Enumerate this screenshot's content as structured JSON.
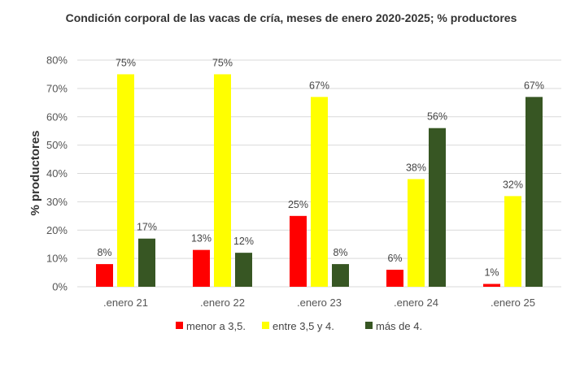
{
  "chart_data": {
    "type": "bar",
    "title": "Condición corporal de las vacas de cría, meses de enero 2020-2025; % productores",
    "ylabel": "% productores",
    "xlabel": "",
    "categories": [
      ".enero 21",
      ".enero 22",
      ".enero 23",
      ".enero 24",
      ".enero 25"
    ],
    "series": [
      {
        "name": "menor a 3,5.",
        "color": "#ff0000",
        "values": [
          8,
          13,
          25,
          6,
          1
        ],
        "labels": [
          "8%",
          "13%",
          "25%",
          "6%",
          "1%"
        ]
      },
      {
        "name": "entre 3,5 y 4.",
        "color": "#ffff00",
        "values": [
          75,
          75,
          67,
          38,
          32
        ],
        "labels": [
          "75%",
          "75%",
          "67%",
          "38%",
          "32%"
        ]
      },
      {
        "name": "más de 4.",
        "color": "#375623",
        "values": [
          17,
          12,
          8,
          56,
          67
        ],
        "labels": [
          "17%",
          "12%",
          "8%",
          "56%",
          "67%"
        ]
      }
    ],
    "ylim": [
      0,
      80
    ],
    "yticks": [
      "0%",
      "10%",
      "20%",
      "30%",
      "40%",
      "50%",
      "60%",
      "70%",
      "80%"
    ],
    "grid": true,
    "legend_position": "bottom"
  }
}
